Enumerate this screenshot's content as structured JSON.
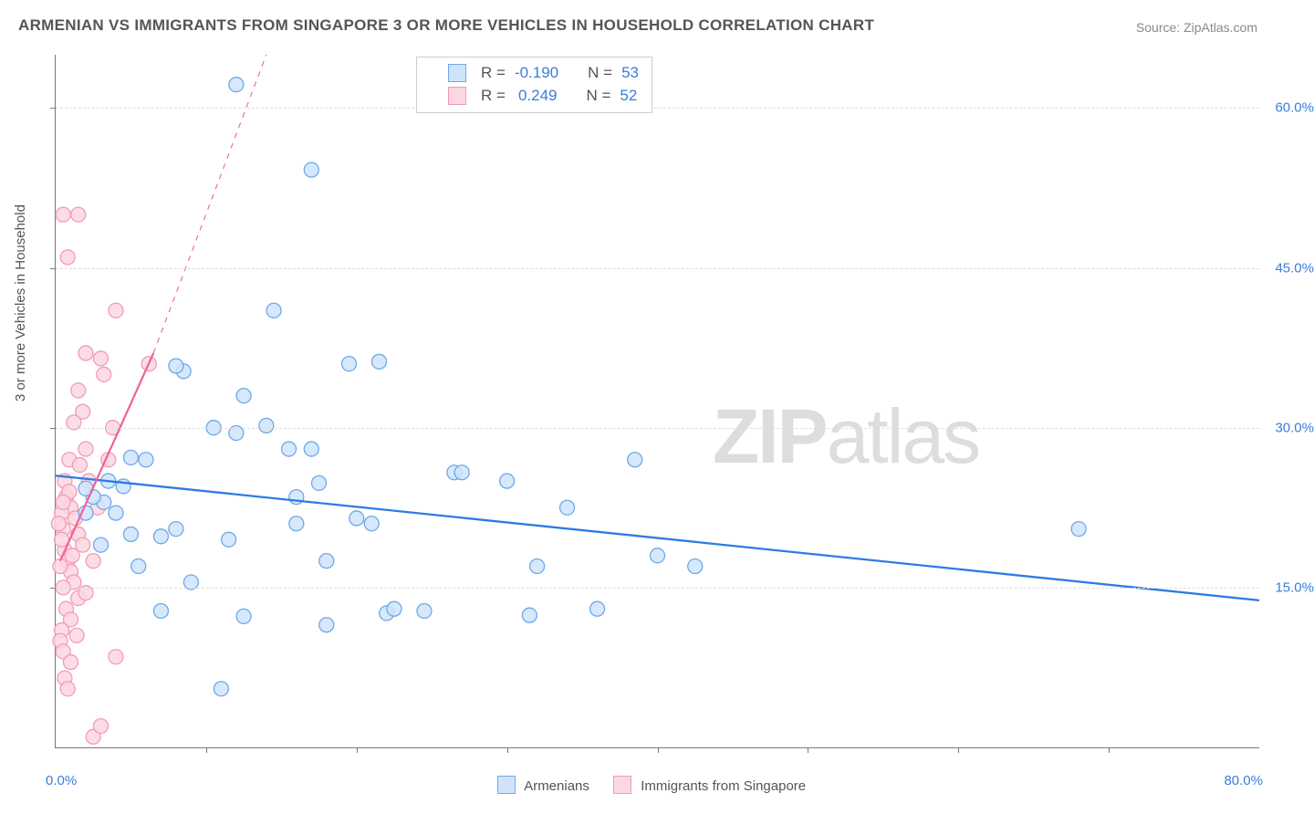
{
  "title": "ARMENIAN VS IMMIGRANTS FROM SINGAPORE 3 OR MORE VEHICLES IN HOUSEHOLD CORRELATION CHART",
  "source": "Source: ZipAtlas.com",
  "watermark_bold": "ZIP",
  "watermark_thin": "atlas",
  "ylabel": "3 or more Vehicles in Household",
  "axis_color": "#777777",
  "grid_color": "#dddddd",
  "text_color": "#555555",
  "value_color": "#3b7dd8",
  "x_axis": {
    "min_label": "0.0%",
    "max_label": "80.0%",
    "min": 0,
    "max": 80,
    "color": "#3b7dd8"
  },
  "y_axis": {
    "min": 0,
    "max": 65,
    "ticks": [
      15,
      30,
      45,
      60
    ],
    "tick_labels": [
      "15.0%",
      "30.0%",
      "45.0%",
      "60.0%"
    ],
    "color": "#3b7dd8"
  },
  "x_subticks": [
    10,
    20,
    30,
    40,
    50,
    60,
    70
  ],
  "series": {
    "a": {
      "label": "Armenians",
      "fill": "#cfe4fb",
      "stroke": "#6fa8e8",
      "line_color": "#2e7ae5",
      "marker_r": 8,
      "marker_opacity": 0.85,
      "line_width": 2.3,
      "trend": {
        "x1": 0,
        "y1": 25.5,
        "x2": 80,
        "y2": 13.8
      },
      "R": "-0.190",
      "N": "53",
      "data": [
        [
          12,
          62.2
        ],
        [
          17,
          54.2
        ],
        [
          14.5,
          41.0
        ],
        [
          12.5,
          33.0
        ],
        [
          8.5,
          35.3
        ],
        [
          8.0,
          35.8
        ],
        [
          19.5,
          36.0
        ],
        [
          21.5,
          36.2
        ],
        [
          10.5,
          30.0
        ],
        [
          12.0,
          29.5
        ],
        [
          14.0,
          30.2
        ],
        [
          15.5,
          28.0
        ],
        [
          17.0,
          28.0
        ],
        [
          17.5,
          24.8
        ],
        [
          16.0,
          23.5
        ],
        [
          26.5,
          25.8
        ],
        [
          27.0,
          25.8
        ],
        [
          30.0,
          25.0
        ],
        [
          34.0,
          22.5
        ],
        [
          38.5,
          27.0
        ],
        [
          40.0,
          18.0
        ],
        [
          42.5,
          17.0
        ],
        [
          36.0,
          13.0
        ],
        [
          32.0,
          17.0
        ],
        [
          31.5,
          12.4
        ],
        [
          22.0,
          12.6
        ],
        [
          22.5,
          13.0
        ],
        [
          20.0,
          21.5
        ],
        [
          21.0,
          21.0
        ],
        [
          11.5,
          19.5
        ],
        [
          7.0,
          19.8
        ],
        [
          7.0,
          12.8
        ],
        [
          6.0,
          27.0
        ],
        [
          5.0,
          27.2
        ],
        [
          4.5,
          24.5
        ],
        [
          4.0,
          22.0
        ],
        [
          3.5,
          25.0
        ],
        [
          3.2,
          23.0
        ],
        [
          5.0,
          20.0
        ],
        [
          5.5,
          17.0
        ],
        [
          8.0,
          20.5
        ],
        [
          9.0,
          15.5
        ],
        [
          11.0,
          5.5
        ],
        [
          16.0,
          21.0
        ],
        [
          18.0,
          11.5
        ],
        [
          12.5,
          12.3
        ],
        [
          2.0,
          22.0
        ],
        [
          2.5,
          23.5
        ],
        [
          2.0,
          24.3
        ],
        [
          3.0,
          19.0
        ],
        [
          68.0,
          20.5
        ],
        [
          18.0,
          17.5
        ],
        [
          24.5,
          12.8
        ]
      ]
    },
    "b": {
      "label": "Immigrants from Singapore",
      "fill": "#fcd7e2",
      "stroke": "#f39bb6",
      "line_color": "#f06292",
      "marker_r": 8,
      "marker_opacity": 0.85,
      "line_width": 2.2,
      "dash_width": 1.1,
      "trend_solid": {
        "x1": 0.3,
        "y1": 17.5,
        "x2": 6.5,
        "y2": 37.0
      },
      "trend_dash": {
        "x1": 6.5,
        "y1": 37.0,
        "x2": 14.0,
        "y2": 65.0
      },
      "R": "0.249",
      "N": "52",
      "data": [
        [
          0.5,
          50.0
        ],
        [
          1.5,
          50.0
        ],
        [
          0.8,
          46.0
        ],
        [
          4.0,
          41.0
        ],
        [
          2.0,
          37.0
        ],
        [
          6.2,
          36.0
        ],
        [
          3.0,
          36.5
        ],
        [
          3.2,
          35.0
        ],
        [
          1.5,
          33.5
        ],
        [
          1.8,
          31.5
        ],
        [
          1.2,
          30.5
        ],
        [
          2.0,
          28.0
        ],
        [
          0.9,
          27.0
        ],
        [
          3.5,
          27.0
        ],
        [
          0.6,
          25.0
        ],
        [
          0.7,
          23.5
        ],
        [
          1.0,
          22.5
        ],
        [
          1.3,
          21.5
        ],
        [
          0.4,
          22.0
        ],
        [
          0.5,
          20.5
        ],
        [
          1.5,
          20.0
        ],
        [
          1.8,
          19.0
        ],
        [
          0.6,
          18.5
        ],
        [
          0.8,
          17.5
        ],
        [
          1.0,
          16.5
        ],
        [
          1.2,
          15.5
        ],
        [
          0.5,
          15.0
        ],
        [
          1.5,
          14.0
        ],
        [
          0.7,
          13.0
        ],
        [
          1.0,
          12.0
        ],
        [
          0.4,
          11.0
        ],
        [
          2.0,
          14.5
        ],
        [
          0.3,
          10.0
        ],
        [
          0.5,
          9.0
        ],
        [
          1.0,
          8.0
        ],
        [
          4.0,
          8.5
        ],
        [
          0.6,
          6.5
        ],
        [
          2.5,
          1.0
        ],
        [
          3.0,
          2.0
        ],
        [
          0.4,
          19.5
        ],
        [
          2.2,
          25.0
        ],
        [
          2.8,
          22.5
        ],
        [
          0.9,
          24.0
        ],
        [
          1.6,
          26.5
        ],
        [
          0.3,
          17.0
        ],
        [
          1.1,
          18.0
        ],
        [
          0.5,
          23.0
        ],
        [
          0.2,
          21.0
        ],
        [
          3.8,
          30.0
        ],
        [
          2.5,
          17.5
        ],
        [
          1.4,
          10.5
        ],
        [
          0.8,
          5.5
        ]
      ]
    }
  },
  "stat_legend_labels": {
    "R": "R =",
    "N": "N ="
  },
  "bottom_legend_gap": 22
}
